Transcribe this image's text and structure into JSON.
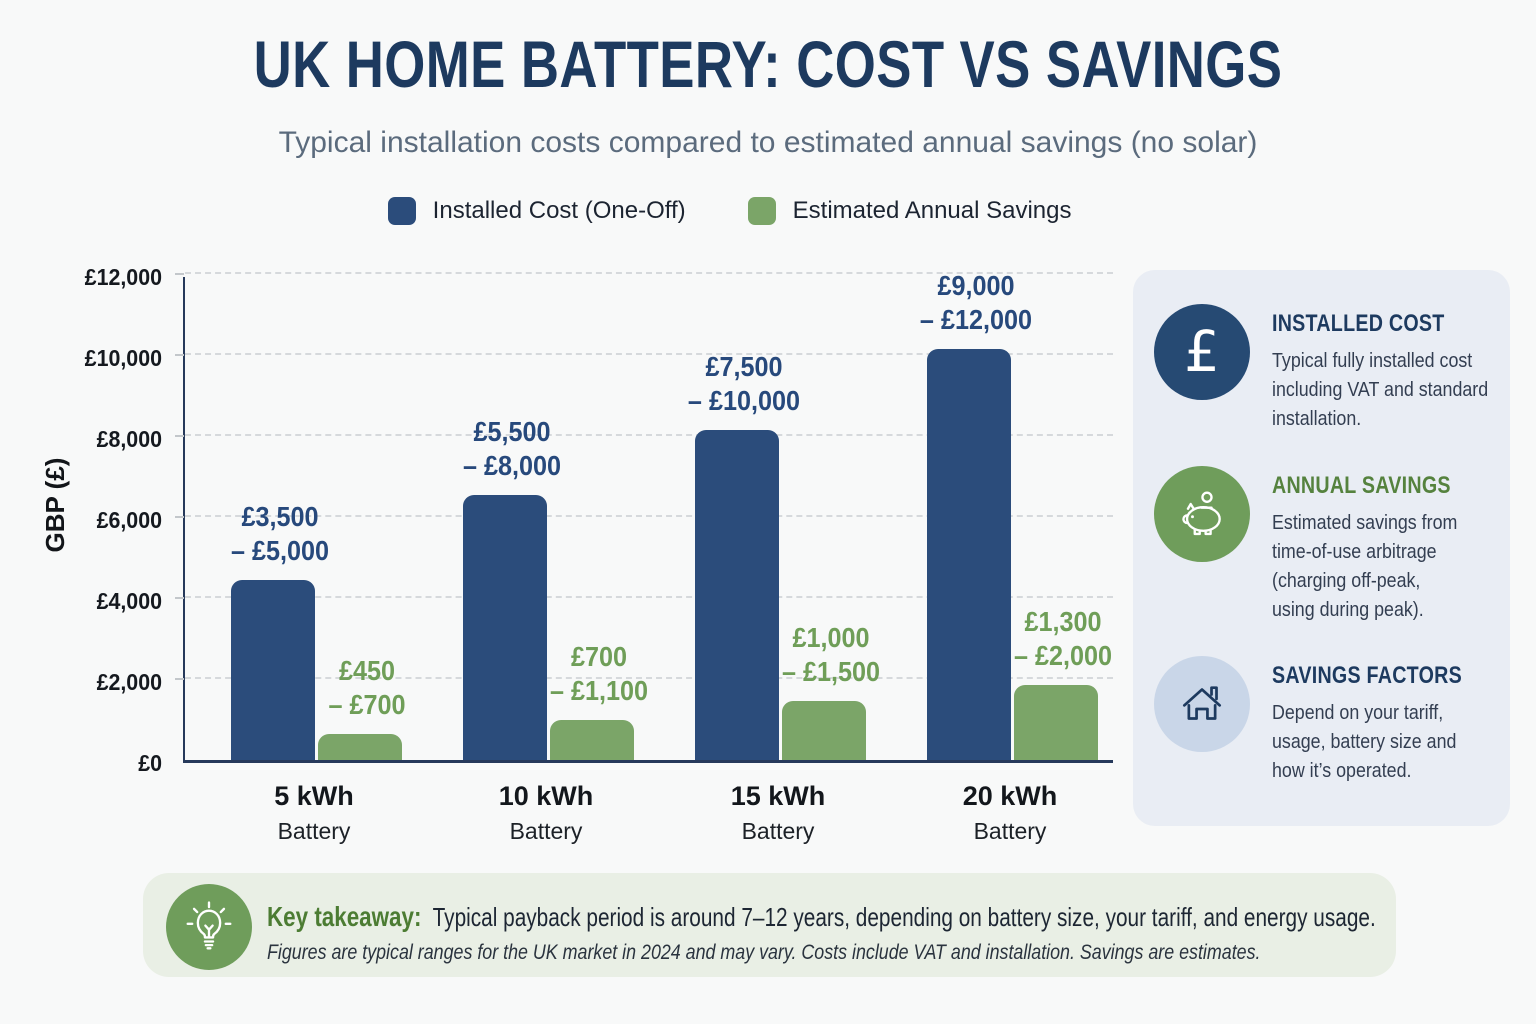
{
  "page": {
    "title": "UK HOME BATTERY: COST VS SAVINGS",
    "subtitle": "Typical installation costs compared to estimated annual savings (no solar)"
  },
  "legend": {
    "items": [
      {
        "label": "Installed Cost (One-Off)",
        "color": "#2b4c7b"
      },
      {
        "label": "Estimated Annual Savings",
        "color": "#7ba568"
      }
    ]
  },
  "chart_data": {
    "type": "bar",
    "title": "UK Home Battery: Cost vs Savings",
    "xlabel": "",
    "ylabel": "GBP (£)",
    "ylim": [
      0,
      12000
    ],
    "grid": "horizontal-dashed",
    "legend_position": "top",
    "yticks": [
      {
        "value": 0,
        "label": "£0"
      },
      {
        "value": 2000,
        "label": "£2,000"
      },
      {
        "value": 4000,
        "label": "£4,000"
      },
      {
        "value": 6000,
        "label": "£6,000"
      },
      {
        "value": 8000,
        "label": "£8,000"
      },
      {
        "value": 10000,
        "label": "£10,000"
      },
      {
        "value": 12000,
        "label": "£12,000"
      }
    ],
    "categories": [
      "5 kWh",
      "10 kWh",
      "15 kWh",
      "20 kWh"
    ],
    "category_sublabel": "Battery",
    "series": [
      {
        "name": "Installed Cost (One-Off)",
        "color": "#2b4c7b",
        "label_color": "#27497c",
        "range_low": [
          3500,
          5500,
          7500,
          9000
        ],
        "range_high": [
          5000,
          8000,
          10000,
          12000
        ],
        "bar_values": [
          4450,
          6550,
          8150,
          10150
        ],
        "labels": [
          [
            "£3,500",
            "– £5,000"
          ],
          [
            "£5,500",
            "– £8,000"
          ],
          [
            "£7,500",
            "– £10,000"
          ],
          [
            "£9,000",
            "– £12,000"
          ]
        ]
      },
      {
        "name": "Estimated Annual Savings",
        "color": "#7ba568",
        "label_color": "#6f9e58",
        "range_low": [
          450,
          700,
          1000,
          1300
        ],
        "range_high": [
          700,
          1100,
          1500,
          2000
        ],
        "bar_values": [
          650,
          980,
          1460,
          1850
        ],
        "labels": [
          [
            "£450",
            "– £700"
          ],
          [
            "£700",
            "– £1,100"
          ],
          [
            "£1,000",
            "– £1,500"
          ],
          [
            "£1,300",
            "– £2,000"
          ]
        ]
      }
    ]
  },
  "sidebar": {
    "cards": [
      {
        "icon": "pound-icon",
        "icon_bg": "#264a73",
        "title": "INSTALLED COST",
        "title_color": "#1d3a5f",
        "body": "Typical fully installed cost\nincluding VAT and standard\ninstallation."
      },
      {
        "icon": "piggy-bank-icon",
        "icon_bg": "#6f9d5b",
        "title": "ANNUAL SAVINGS",
        "title_color": "#55823e",
        "body": "Estimated savings from\ntime-of-use arbitrage\n(charging off-peak,\nusing during peak)."
      },
      {
        "icon": "house-icon",
        "icon_bg": "#c9d6e8",
        "title": "SAVINGS FACTORS",
        "title_color": "#1d3a5f",
        "body": "Depend on your tariff,\nusage, battery size and\nhow it’s operated."
      }
    ]
  },
  "takeaway": {
    "icon": "lightbulb-icon",
    "label": "Key takeaway:",
    "text": "Typical payback period is around 7–12 years, depending on battery size, your tariff, and energy usage.",
    "footnote": "Figures are typical ranges for the UK market in 2024 and may vary. Costs include VAT and installation. Savings are estimates."
  },
  "colors": {
    "background": "#f8f9f9",
    "title_navy": "#1d3a5f",
    "subtitle_gray": "#5b6b7d",
    "bar_navy": "#2b4c7b",
    "bar_green": "#7ba568",
    "axis": "#26395b",
    "gridline": "#d6d9dc",
    "sidebar_bg": "#e9edf4",
    "takeaway_bg": "#e9efe5",
    "takeaway_green": "#4c7c33",
    "house_circle_bg": "#c9d6e8"
  }
}
